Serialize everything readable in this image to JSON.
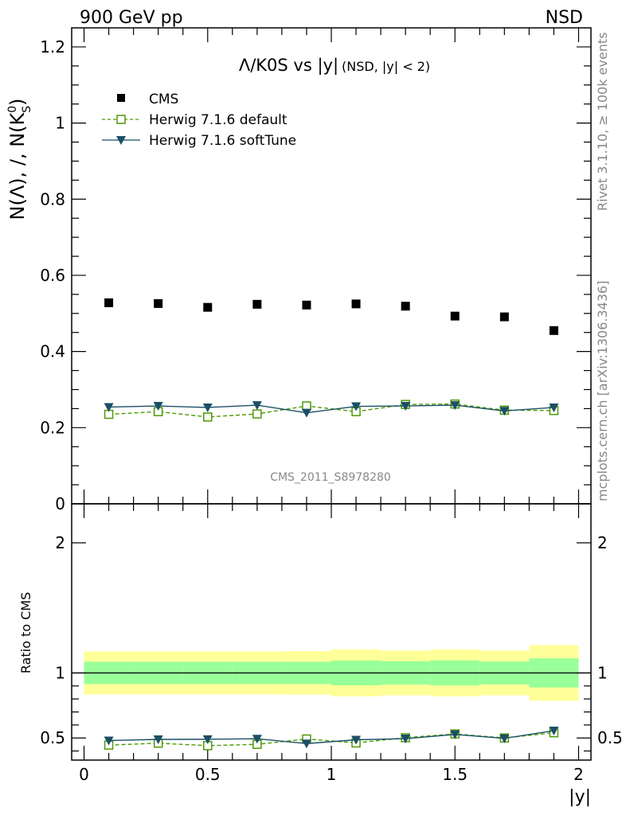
{
  "header": {
    "left": "900 GeV pp",
    "right": "NSD"
  },
  "side_labels": {
    "rivet": "Rivet 3.1.10, ≥ 100k events",
    "mcplots": "mcplots.cern.ch [arXiv:1306.3436]"
  },
  "watermark": "CMS_2011_S8978280",
  "chart_data": [
    {
      "type": "scatter",
      "panel": "main",
      "title": "Λ/K0S vs |y|",
      "title_suffix": "(NSD, |y| < 2)",
      "ylabel": "N(Λ), /, N(K⁰S)",
      "ylabel_parts": {
        "main": "N(Λ), /, N(K",
        "sup": "0",
        "sub": "S",
        "close": ")"
      },
      "xlim": [
        -0.05,
        2.05
      ],
      "ylim": [
        0,
        1.25
      ],
      "yticks": [
        0,
        0.2,
        0.4,
        0.6,
        0.8,
        1,
        1.2
      ],
      "ytick_labels": [
        "0",
        "0.2",
        "0.4",
        "0.6",
        "0.8",
        "1",
        "1.2"
      ],
      "x": [
        0.1,
        0.3,
        0.5,
        0.7,
        0.9,
        1.1,
        1.3,
        1.5,
        1.7,
        1.9
      ],
      "series": [
        {
          "name": "CMS",
          "color": "#000000",
          "marker": "square-filled",
          "values": [
            0.528,
            0.526,
            0.516,
            0.524,
            0.522,
            0.525,
            0.519,
            0.493,
            0.491,
            0.455
          ]
        },
        {
          "name": "Herwig 7.1.6 default",
          "color": "#4e9a06",
          "marker": "square-open",
          "line": "dashed",
          "values": [
            0.235,
            0.242,
            0.228,
            0.236,
            0.257,
            0.242,
            0.261,
            0.262,
            0.246,
            0.245
          ]
        },
        {
          "name": "Herwig 7.1.6 softTune",
          "color": "#1b4f66",
          "marker": "triangle-down",
          "line": "solid",
          "values": [
            0.254,
            0.257,
            0.253,
            0.259,
            0.239,
            0.256,
            0.257,
            0.259,
            0.244,
            0.253
          ]
        }
      ]
    },
    {
      "type": "scatter",
      "panel": "ratio",
      "ylabel": "Ratio to CMS",
      "xlabel": "|y|",
      "xlim": [
        -0.05,
        2.05
      ],
      "ylim": [
        0.33,
        2.3
      ],
      "xticks": [
        0,
        0.5,
        1,
        1.5,
        2
      ],
      "xtick_labels": [
        "0",
        "0.5",
        "1",
        "1.5",
        "2"
      ],
      "yticks": [
        0.5,
        1,
        2
      ],
      "ytick_labels": [
        "0.5",
        "1",
        "2"
      ],
      "bins": [
        [
          0,
          0.2
        ],
        [
          0.2,
          0.4
        ],
        [
          0.4,
          0.6
        ],
        [
          0.6,
          0.8
        ],
        [
          0.8,
          1.0
        ],
        [
          1.0,
          1.2
        ],
        [
          1.2,
          1.4
        ],
        [
          1.4,
          1.6
        ],
        [
          1.6,
          1.8
        ],
        [
          1.8,
          2.0
        ]
      ],
      "band_stat": [
        0.086,
        0.086,
        0.086,
        0.086,
        0.086,
        0.095,
        0.09,
        0.096,
        0.088,
        0.112
      ],
      "band_total": [
        0.165,
        0.165,
        0.165,
        0.165,
        0.167,
        0.18,
        0.172,
        0.18,
        0.172,
        0.214
      ],
      "band_colors": {
        "stat": "#99ff99",
        "total": "#ffff99"
      },
      "x": [
        0.1,
        0.3,
        0.5,
        0.7,
        0.9,
        1.1,
        1.3,
        1.5,
        1.7,
        1.9
      ],
      "series": [
        {
          "name": "Herwig 7.1.6 default",
          "color": "#4e9a06",
          "marker": "square-open",
          "line": "dashed",
          "values": [
            0.445,
            0.46,
            0.441,
            0.451,
            0.492,
            0.462,
            0.502,
            0.531,
            0.5,
            0.54
          ]
        },
        {
          "name": "Herwig 7.1.6 softTune",
          "color": "#1b4f66",
          "marker": "triangle-down",
          "line": "solid",
          "values": [
            0.48,
            0.489,
            0.49,
            0.494,
            0.457,
            0.486,
            0.495,
            0.527,
            0.497,
            0.556
          ]
        }
      ]
    }
  ]
}
